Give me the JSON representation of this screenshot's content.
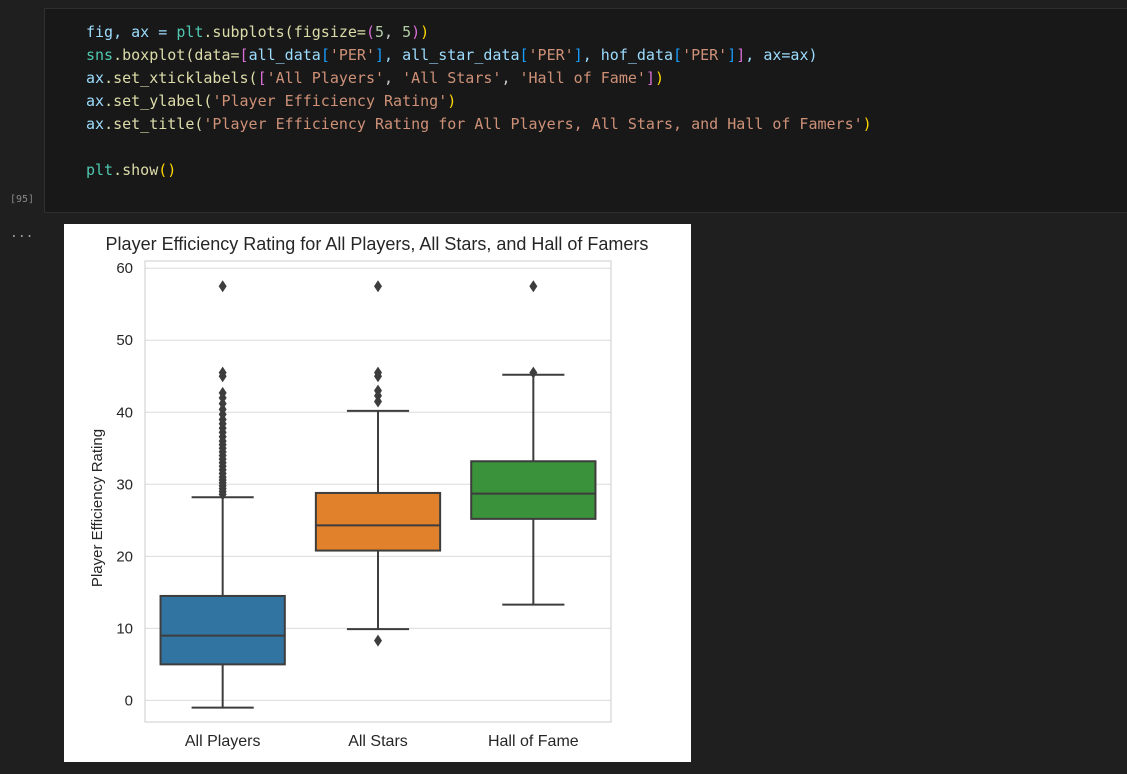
{
  "cell": {
    "execution_count": "[95]",
    "code_lines": [
      [
        [
          "fig, ax = ",
          "#9cdcfe"
        ],
        [
          "plt",
          "#4ec9b0"
        ],
        [
          ".subplots(figsize=",
          "#dcdcaa"
        ],
        [
          "(",
          "#da70d6"
        ],
        [
          "5",
          "#b5cea8"
        ],
        [
          ", ",
          "#cccccc"
        ],
        [
          "5",
          "#b5cea8"
        ],
        [
          ")",
          "#da70d6"
        ],
        [
          ")",
          "#ffd700"
        ]
      ],
      [
        [
          "sns",
          "#4ec9b0"
        ],
        [
          ".boxplot(data=",
          "#dcdcaa"
        ],
        [
          "[",
          "#da70d6"
        ],
        [
          "all_data",
          "#9cdcfe"
        ],
        [
          "[",
          "#179fff"
        ],
        [
          "'PER'",
          "#ce9178"
        ],
        [
          "]",
          "#179fff"
        ],
        [
          ", all_star_data",
          "#9cdcfe"
        ],
        [
          "[",
          "#179fff"
        ],
        [
          "'PER'",
          "#ce9178"
        ],
        [
          "]",
          "#179fff"
        ],
        [
          ", hof_data",
          "#9cdcfe"
        ],
        [
          "[",
          "#179fff"
        ],
        [
          "'PER'",
          "#ce9178"
        ],
        [
          "]",
          "#179fff"
        ],
        [
          "]",
          "#da70d6"
        ],
        [
          ", ax=ax)",
          "#9cdcfe"
        ]
      ],
      [
        [
          "ax",
          "#9cdcfe"
        ],
        [
          ".set_xticklabels(",
          "#dcdcaa"
        ],
        [
          "[",
          "#da70d6"
        ],
        [
          "'All Players'",
          "#ce9178"
        ],
        [
          ", ",
          "#cccccc"
        ],
        [
          "'All Stars'",
          "#ce9178"
        ],
        [
          ", ",
          "#cccccc"
        ],
        [
          "'Hall of Fame'",
          "#ce9178"
        ],
        [
          "]",
          "#da70d6"
        ],
        [
          ")",
          "#ffd700"
        ]
      ],
      [
        [
          "ax",
          "#9cdcfe"
        ],
        [
          ".set_ylabel(",
          "#dcdcaa"
        ],
        [
          "'Player Efficiency Rating'",
          "#ce9178"
        ],
        [
          ")",
          "#ffd700"
        ]
      ],
      [
        [
          "ax",
          "#9cdcfe"
        ],
        [
          ".set_title(",
          "#dcdcaa"
        ],
        [
          "'Player Efficiency Rating for All Players, All Stars, and Hall of Famers'",
          "#ce9178"
        ],
        [
          ")",
          "#ffd700"
        ]
      ],
      [
        [
          "",
          "#cccccc"
        ]
      ],
      [
        [
          "plt",
          "#4ec9b0"
        ],
        [
          ".show",
          "#dcdcaa"
        ],
        [
          "()",
          "#ffd700"
        ]
      ]
    ]
  },
  "output": {
    "menu_glyph": "..."
  },
  "chart_data": {
    "type": "box",
    "title": "Player Efficiency Rating for All Players, All Stars, and Hall of Famers",
    "xlabel": "",
    "ylabel": "Player Efficiency Rating",
    "ylim": [
      -3,
      61
    ],
    "yticks": [
      0,
      10,
      20,
      30,
      40,
      50,
      60
    ],
    "grid": true,
    "categories": [
      "All Players",
      "All Stars",
      "Hall of Fame"
    ],
    "boxes": [
      {
        "category": "All Players",
        "whisker_low": -1,
        "q1": 5,
        "median": 9,
        "q3": 14.5,
        "whisker_high": 28.2,
        "color": "#3274a1",
        "outliers": [
          28.6,
          29.0,
          29.4,
          29.8,
          30.2,
          30.6,
          31.0,
          31.5,
          32.0,
          32.5,
          33.0,
          33.5,
          34.0,
          34.5,
          35.0,
          35.5,
          36.0,
          36.6,
          37.2,
          37.8,
          38.4,
          39.0,
          39.7,
          40.4,
          41.2,
          42.0,
          42.7,
          45.0,
          45.5,
          57.5
        ]
      },
      {
        "category": "All Stars",
        "whisker_low": 9.9,
        "q1": 20.8,
        "median": 24.3,
        "q3": 28.8,
        "whisker_high": 40.2,
        "color": "#e1812c",
        "outliers": [
          8.3,
          41.5,
          42.3,
          43.0,
          45.0,
          45.5,
          57.5
        ]
      },
      {
        "category": "Hall of Fame",
        "whisker_low": 13.3,
        "q1": 25.2,
        "median": 28.7,
        "q3": 33.2,
        "whisker_high": 45.2,
        "color": "#3a923a",
        "outliers": [
          45.5,
          57.5
        ]
      }
    ]
  }
}
